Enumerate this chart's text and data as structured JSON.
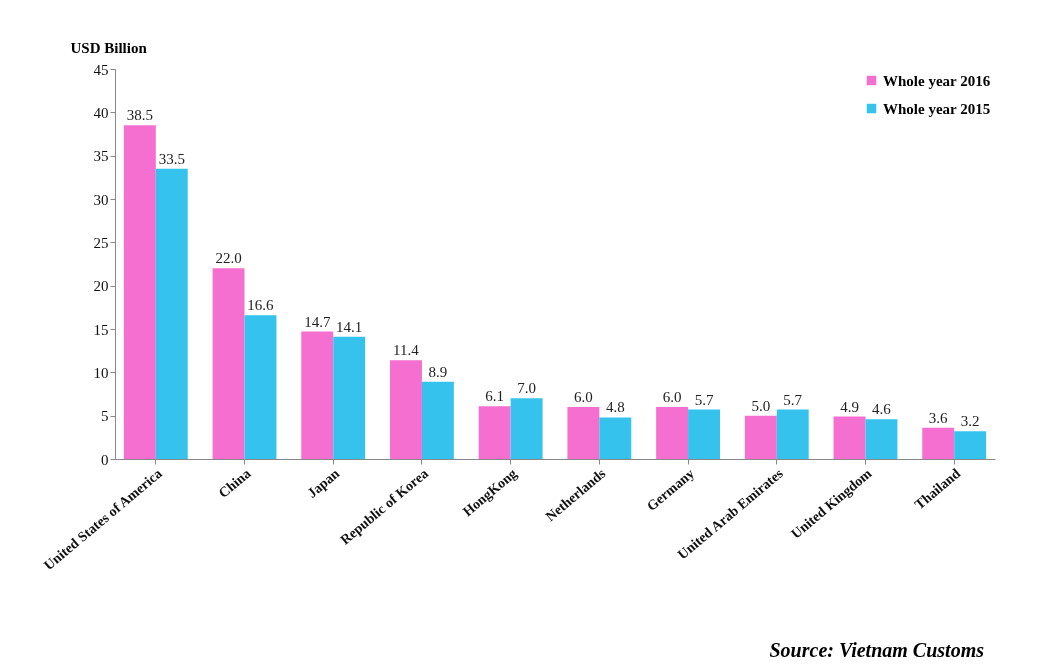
{
  "chart_data": {
    "type": "bar",
    "ylabel": "USD Billion",
    "categories": [
      "United States of America",
      "China",
      "Japan",
      "Republic of Korea",
      "HongKong",
      "Netherlands",
      "Germany",
      "United Arab Emirates",
      "United Kingdom",
      "Thailand"
    ],
    "series": [
      {
        "name": "Whole year 2016",
        "color": "#f56fd0",
        "values": [
          38.5,
          22.0,
          14.7,
          11.4,
          6.1,
          6.0,
          6.0,
          5.0,
          4.9,
          3.6
        ],
        "value_labels": [
          "38.5",
          "22.0",
          "14.7",
          "11.4",
          "6.1",
          "6.0",
          "6.0",
          "5.0",
          "4.9",
          "3.6"
        ]
      },
      {
        "name": "Whole year 2015",
        "color": "#35c3ee",
        "values": [
          33.5,
          16.6,
          14.1,
          8.9,
          7.0,
          4.8,
          5.7,
          5.7,
          4.6,
          3.2
        ],
        "value_labels": [
          "33.5",
          "16.6",
          "14.1",
          "8.9",
          "7.0",
          "4.8",
          "5.7",
          "5.7",
          "4.6",
          "3.2"
        ]
      }
    ],
    "ylim": [
      0,
      45
    ],
    "yticks": [
      0,
      5,
      10,
      15,
      20,
      25,
      30,
      35,
      40,
      45
    ],
    "grid": false,
    "legend": "top right",
    "annotations": [
      "Source: Vietnam Customs"
    ]
  }
}
